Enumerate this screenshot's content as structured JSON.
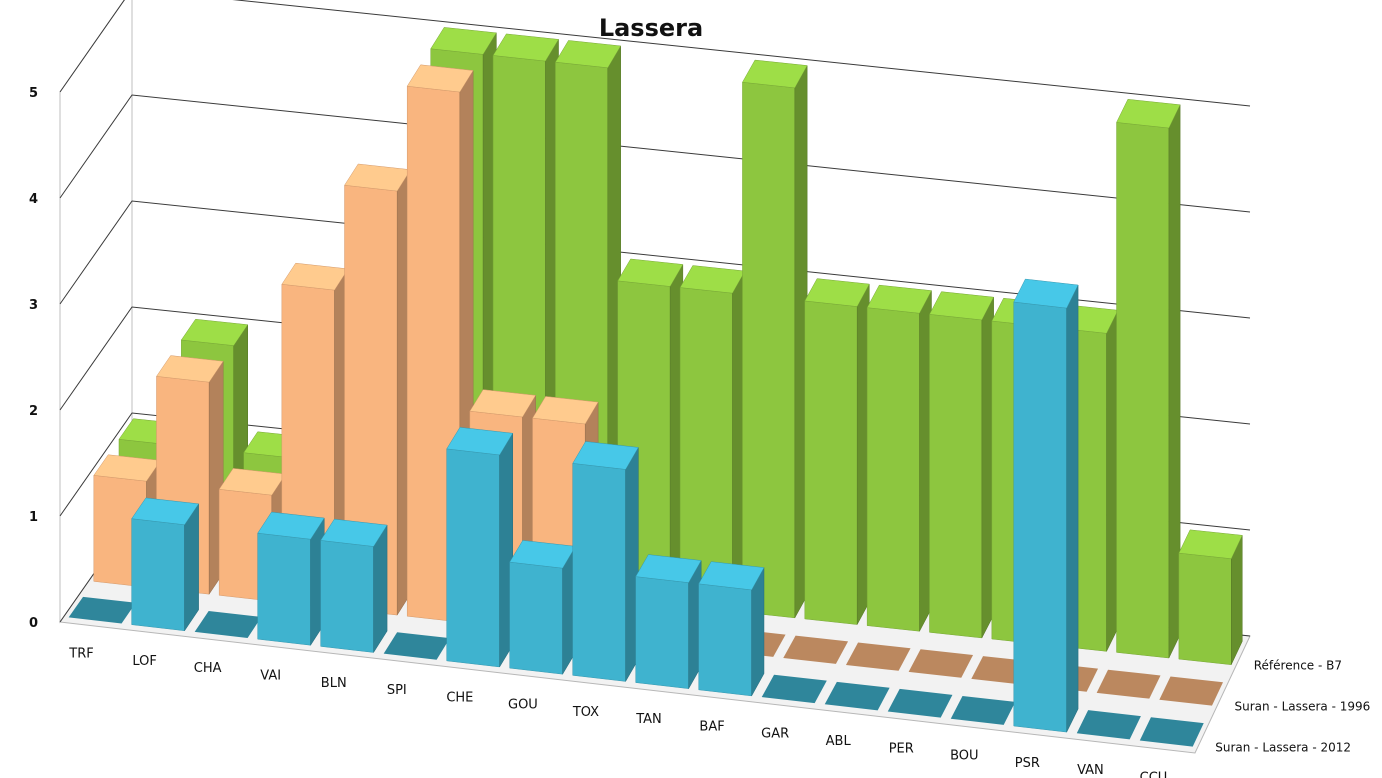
{
  "chart_data": {
    "type": "bar",
    "subtype": "3d-column",
    "title": "Lassera",
    "categories": [
      "TRF",
      "LOF",
      "CHA",
      "VAI",
      "BLN",
      "SPI",
      "CHE",
      "GOU",
      "TOX",
      "TAN",
      "BAF",
      "GAR",
      "ABL",
      "PER",
      "BOU",
      "PSR",
      "VAN",
      "CCU"
    ],
    "ylim": [
      0,
      5
    ],
    "yticks": [
      "0",
      "1",
      "2",
      "3",
      "4",
      "5"
    ],
    "grid": true,
    "legend_position": "bottom-right",
    "series": [
      {
        "name": "Suran - Lassera - 2012",
        "color": "#3fb3cf",
        "values": [
          0,
          1,
          0,
          1,
          1,
          0,
          2,
          1,
          2,
          1,
          1,
          0,
          0,
          0,
          0,
          4,
          0,
          0
        ]
      },
      {
        "name": "Suran - Lassera - 1996",
        "color": "#f9b57f",
        "values": [
          1,
          2,
          1,
          3,
          4,
          5,
          2,
          2,
          0,
          0,
          0,
          0,
          0,
          0,
          0,
          0,
          0,
          0
        ]
      },
      {
        "name": "Référence - B7",
        "color": "#8dc63f",
        "values": [
          1,
          2,
          1,
          1,
          1,
          5,
          5,
          5,
          3,
          3,
          5,
          3,
          3,
          3,
          3,
          3,
          5,
          1
        ]
      }
    ]
  }
}
